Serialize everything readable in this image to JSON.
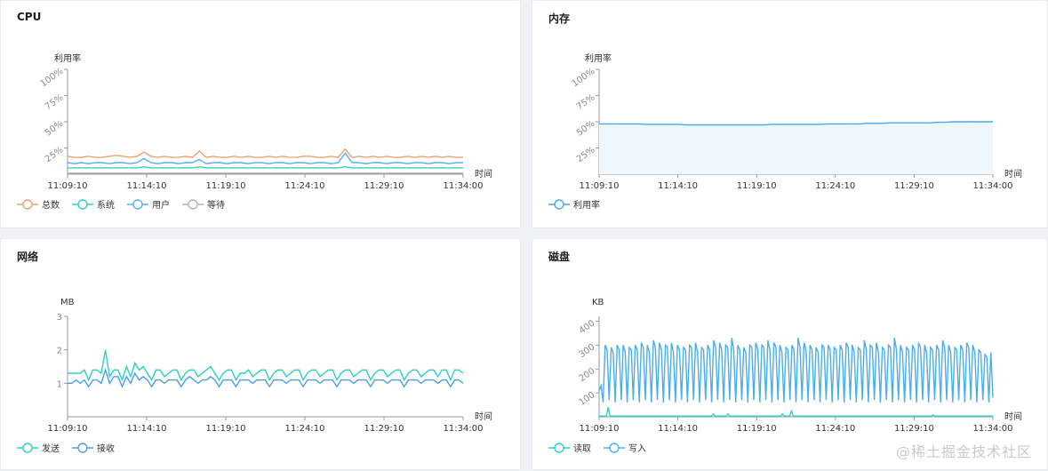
{
  "panels": {
    "cpu": {
      "title": "CPU"
    },
    "mem": {
      "title": "内存"
    },
    "net": {
      "title": "网络"
    },
    "disk": {
      "title": "磁盘"
    }
  },
  "watermark": "@稀土掘金技术社区",
  "chart_data": [
    {
      "id": "cpu",
      "type": "line",
      "ylabel": "利用率",
      "xlabel": "时间",
      "x_ticks": [
        "11:09:10",
        "11:14:10",
        "11:19:10",
        "11:24:10",
        "11:29:10",
        "11:34:00"
      ],
      "y_ticks": [
        "25%",
        "50%",
        "75%",
        "100%"
      ],
      "ylim": [
        0,
        100
      ],
      "series": [
        {
          "name": "总数",
          "color": "#f0a070",
          "values": [
            17,
            16,
            16,
            17,
            16,
            16,
            17,
            18,
            17,
            16,
            17,
            21,
            17,
            16,
            17,
            16,
            16,
            17,
            16,
            22,
            16,
            17,
            16,
            16,
            17,
            16,
            17,
            16,
            16,
            17,
            16,
            17,
            16,
            16,
            17,
            17,
            16,
            16,
            17,
            16,
            24,
            16,
            17,
            16,
            17,
            16,
            17,
            16,
            16,
            17,
            16,
            17,
            16,
            17,
            16,
            17,
            16,
            16
          ]
        },
        {
          "name": "系统",
          "color": "#35d0c0",
          "values": [
            6,
            6,
            6,
            6,
            6,
            6,
            6,
            6,
            6,
            6,
            6,
            7,
            6,
            6,
            6,
            6,
            6,
            6,
            6,
            7,
            6,
            6,
            6,
            6,
            6,
            6,
            6,
            6,
            6,
            6,
            6,
            6,
            6,
            6,
            6,
            6,
            6,
            6,
            6,
            6,
            7,
            6,
            6,
            6,
            6,
            6,
            6,
            6,
            6,
            6,
            6,
            6,
            6,
            6,
            6,
            6,
            6,
            6
          ]
        },
        {
          "name": "用户",
          "color": "#5aaef0",
          "values": [
            11,
            10,
            11,
            10,
            11,
            11,
            10,
            11,
            11,
            10,
            11,
            15,
            11,
            10,
            11,
            11,
            10,
            11,
            11,
            14,
            10,
            11,
            11,
            10,
            11,
            11,
            10,
            11,
            11,
            10,
            11,
            11,
            10,
            11,
            11,
            10,
            11,
            11,
            10,
            11,
            20,
            11,
            11,
            10,
            11,
            11,
            10,
            11,
            11,
            10,
            11,
            11,
            10,
            11,
            11,
            10,
            11,
            11
          ]
        },
        {
          "name": "等待",
          "color": "#b0b4bc",
          "values": [
            1,
            1,
            1,
            1,
            1,
            1,
            1,
            1,
            1,
            1,
            1,
            1,
            1,
            1,
            1,
            1,
            1,
            1,
            1,
            1,
            1,
            1,
            1,
            1,
            1,
            1,
            1,
            1,
            1,
            1,
            1,
            1,
            1,
            1,
            1,
            1,
            1,
            1,
            1,
            1,
            1,
            1,
            1,
            1,
            1,
            1,
            1,
            1,
            1,
            1,
            1,
            1,
            1,
            1,
            1,
            1,
            1,
            1
          ]
        }
      ]
    },
    {
      "id": "mem",
      "type": "area",
      "ylabel": "利用率",
      "xlabel": "时间",
      "x_ticks": [
        "11:09:10",
        "11:14:10",
        "11:19:10",
        "11:24:10",
        "11:29:10",
        "11:34:00"
      ],
      "y_ticks": [
        "25%",
        "50%",
        "75%",
        "100%"
      ],
      "ylim": [
        0,
        100
      ],
      "series": [
        {
          "name": "利用率",
          "color": "#4aa8ec",
          "values": [
            48,
            48,
            48,
            48,
            48,
            48,
            47.5,
            47.5,
            47.5,
            47.5,
            47.5,
            47,
            47,
            47,
            47,
            47,
            47,
            47,
            47,
            47,
            47,
            47,
            47.5,
            47.5,
            47.5,
            47.5,
            47.5,
            47.5,
            47.5,
            48,
            48,
            48,
            48,
            48,
            48.5,
            48.5,
            48.5,
            49,
            49,
            49,
            49,
            49,
            49,
            49.5,
            49.5,
            50,
            50,
            50,
            50,
            50,
            50
          ]
        }
      ]
    },
    {
      "id": "net",
      "type": "line",
      "ylabel": "MB",
      "xlabel": "时间",
      "x_ticks": [
        "11:09:10",
        "11:14:10",
        "11:19:10",
        "11:24:10",
        "11:29:10",
        "11:34:00"
      ],
      "y_ticks": [
        "1",
        "2",
        "3"
      ],
      "ylim": [
        0,
        3
      ],
      "series": [
        {
          "name": "发送",
          "color": "#2ad2c0",
          "values": [
            1.3,
            1.3,
            1.3,
            1.3,
            1.4,
            1.1,
            1.4,
            1.4,
            1.3,
            2.0,
            1.2,
            1.4,
            1.4,
            1.1,
            1.5,
            1.2,
            1.6,
            1.4,
            1.5,
            1.3,
            1.1,
            1.4,
            1.4,
            1.2,
            1.3,
            1.4,
            1.4,
            1.1,
            1.3,
            1.4,
            1.4,
            1.2,
            1.3,
            1.4,
            1.5,
            1.3,
            1.1,
            1.3,
            1.4,
            1.4,
            1.1,
            1.3,
            1.3,
            1.4,
            1.2,
            1.3,
            1.4,
            1.4,
            1.1,
            1.3,
            1.4,
            1.4,
            1.2,
            1.3,
            1.4,
            1.4,
            1.1,
            1.3,
            1.4,
            1.4,
            1.2,
            1.3,
            1.4,
            1.4,
            1.1,
            1.3,
            1.4,
            1.4,
            1.2,
            1.3,
            1.4,
            1.4,
            1.1,
            1.3,
            1.4,
            1.4,
            1.2,
            1.3,
            1.4,
            1.4,
            1.1,
            1.3,
            1.4,
            1.4,
            1.2,
            1.3,
            1.4,
            1.4,
            1.2,
            1.4,
            1.4,
            1.1,
            1.4,
            1.4,
            1.3
          ]
        },
        {
          "name": "接收",
          "color": "#4a9ee8",
          "values": [
            1.0,
            1.0,
            1.1,
            1.0,
            1.1,
            0.9,
            1.1,
            1.1,
            1.0,
            1.4,
            1.0,
            1.2,
            1.2,
            0.9,
            1.2,
            1.0,
            1.3,
            1.1,
            1.2,
            1.1,
            0.9,
            1.1,
            1.1,
            1.0,
            1.1,
            1.1,
            1.1,
            0.9,
            1.1,
            1.2,
            1.1,
            1.0,
            1.1,
            1.1,
            1.2,
            1.1,
            0.9,
            1.1,
            1.1,
            1.1,
            0.9,
            1.1,
            1.1,
            1.1,
            1.0,
            1.1,
            1.1,
            1.1,
            0.9,
            1.1,
            1.1,
            1.1,
            1.0,
            1.1,
            1.1,
            1.1,
            0.9,
            1.1,
            1.1,
            1.1,
            1.0,
            1.1,
            1.1,
            1.1,
            0.9,
            1.1,
            1.1,
            1.1,
            1.0,
            1.1,
            1.1,
            1.1,
            0.9,
            1.1,
            1.1,
            1.1,
            1.0,
            1.1,
            1.1,
            1.1,
            0.9,
            1.1,
            1.1,
            1.1,
            1.0,
            1.1,
            1.1,
            1.1,
            1.0,
            1.1,
            1.1,
            0.9,
            1.1,
            1.1,
            1.0
          ]
        }
      ]
    },
    {
      "id": "disk",
      "type": "line",
      "ylabel": "KB",
      "xlabel": "时间",
      "x_ticks": [
        "11:09:10",
        "11:14:10",
        "11:19:10",
        "11:24:10",
        "11:29:10",
        "11:34:00"
      ],
      "y_ticks": [
        "100",
        "200",
        "300",
        "400"
      ],
      "ylim": [
        0,
        420
      ],
      "series": [
        {
          "name": "读取",
          "color": "#2ad2c0",
          "values": [
            3,
            3,
            3,
            3,
            3,
            40,
            3,
            3,
            3,
            3,
            3,
            3,
            3,
            3,
            3,
            3,
            3,
            3,
            3,
            3,
            3,
            3,
            3,
            3,
            3,
            3,
            3,
            3,
            3,
            3,
            3,
            3,
            3,
            3,
            3,
            3,
            3,
            3,
            3,
            3,
            3,
            3,
            3,
            3,
            3,
            3,
            3,
            3,
            3,
            3,
            3,
            3,
            3,
            3,
            3,
            3,
            3,
            3,
            3,
            3,
            3,
            3,
            3,
            12,
            3,
            3,
            3,
            3,
            3,
            3,
            3,
            12,
            3,
            3,
            3,
            3,
            3,
            3,
            3,
            3,
            3,
            3,
            3,
            3,
            3,
            3,
            3,
            3,
            3,
            3,
            3,
            3,
            3,
            3,
            3,
            3,
            3,
            3,
            3,
            3,
            3,
            12,
            3,
            3,
            3,
            3,
            25,
            3,
            3,
            3,
            3,
            3,
            3,
            3,
            3,
            3,
            3,
            3,
            3,
            3,
            3,
            3,
            3,
            3,
            3,
            3,
            3,
            3,
            3,
            3,
            3,
            3,
            3,
            3,
            3,
            3,
            3,
            3,
            3,
            3,
            3,
            3,
            3,
            3,
            3,
            3,
            3,
            3,
            3,
            3,
            3,
            3,
            3,
            3,
            3,
            3,
            3,
            3,
            3,
            3,
            3,
            3,
            3,
            3,
            3,
            3,
            3,
            3,
            3,
            3,
            3,
            3,
            3,
            3,
            3,
            3,
            3,
            3,
            3,
            3,
            3,
            3,
            3,
            3,
            8,
            3,
            3,
            3,
            3,
            3,
            3,
            3,
            3,
            3,
            3,
            3,
            3,
            3,
            3,
            3,
            3,
            3,
            3,
            3,
            3,
            3,
            3,
            3,
            3,
            3,
            3,
            3,
            3,
            3,
            3,
            3,
            3,
            3
          ]
        },
        {
          "name": "写入",
          "color": "#4aaeec",
          "values": [
            110,
            130,
            60,
            300,
            280,
            70,
            290,
            270,
            60,
            300,
            280,
            70,
            300,
            270,
            60,
            290,
            280,
            70,
            300,
            280,
            60,
            310,
            290,
            70,
            300,
            270,
            60,
            320,
            290,
            70,
            310,
            280,
            60,
            300,
            290,
            70,
            310,
            270,
            60,
            300,
            280,
            70,
            290,
            280,
            60,
            300,
            290,
            70,
            310,
            270,
            60,
            290,
            280,
            70,
            300,
            280,
            60,
            320,
            290,
            70,
            310,
            280,
            60,
            300,
            290,
            70,
            330,
            280,
            60,
            300,
            280,
            70,
            290,
            270,
            60,
            300,
            290,
            70,
            310,
            280,
            60,
            300,
            290,
            70,
            320,
            280,
            60,
            310,
            290,
            70,
            300,
            270,
            60,
            290,
            280,
            70,
            300,
            280,
            60,
            330,
            290,
            70,
            310,
            280,
            60,
            300,
            280,
            70,
            290,
            270,
            60,
            300,
            290,
            70,
            300,
            280,
            60,
            290,
            280,
            70,
            300,
            280,
            60,
            310,
            290,
            70,
            300,
            270,
            60,
            290,
            280,
            70,
            320,
            280,
            60,
            300,
            290,
            70,
            310,
            270,
            60,
            290,
            280,
            70,
            300,
            290,
            60,
            330,
            280,
            70,
            300,
            270,
            60,
            290,
            280,
            70,
            300,
            280,
            60,
            310,
            290,
            70,
            300,
            270,
            60,
            290,
            280,
            70,
            300,
            280,
            60,
            320,
            290,
            70,
            300,
            270,
            60,
            290,
            280,
            70,
            300,
            280,
            60,
            310,
            290,
            70,
            300,
            270,
            60,
            280,
            270,
            70,
            260,
            250,
            60,
            270,
            80
          ]
        }
      ]
    }
  ]
}
